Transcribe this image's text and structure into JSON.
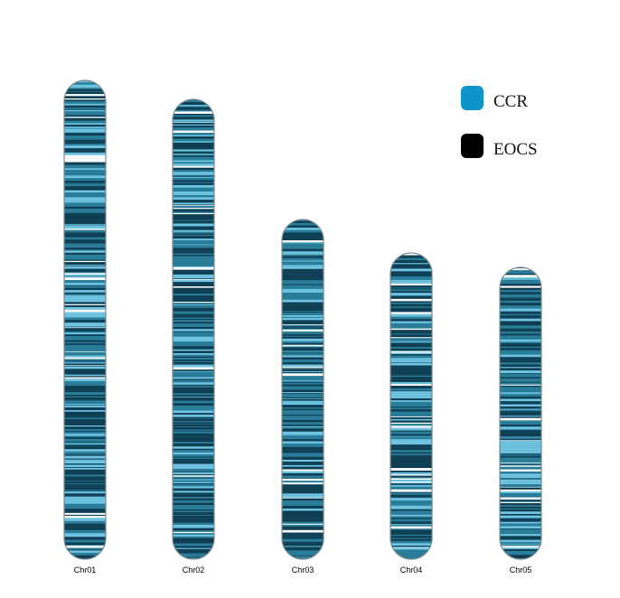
{
  "figure": {
    "background": "#ffffff"
  },
  "legend": {
    "items": [
      {
        "label": "CCR",
        "color": "#0e94c8"
      },
      {
        "label": "EOCS",
        "color": "#000000"
      }
    ]
  },
  "chromosomes": [
    {
      "label": "Chr01",
      "relative_length": 1.0
    },
    {
      "label": "Chr02",
      "relative_length": 0.96
    },
    {
      "label": "Chr03",
      "relative_length": 0.71
    },
    {
      "label": "Chr04",
      "relative_length": 0.64
    },
    {
      "label": "Chr05",
      "relative_length": 0.61
    }
  ],
  "colors": {
    "band_base": "#2a7d98",
    "band_dark": "#0f3d52",
    "band_light": "#6fc4e2",
    "band_white": "#ffffff",
    "outline": "#7a8a90"
  }
}
